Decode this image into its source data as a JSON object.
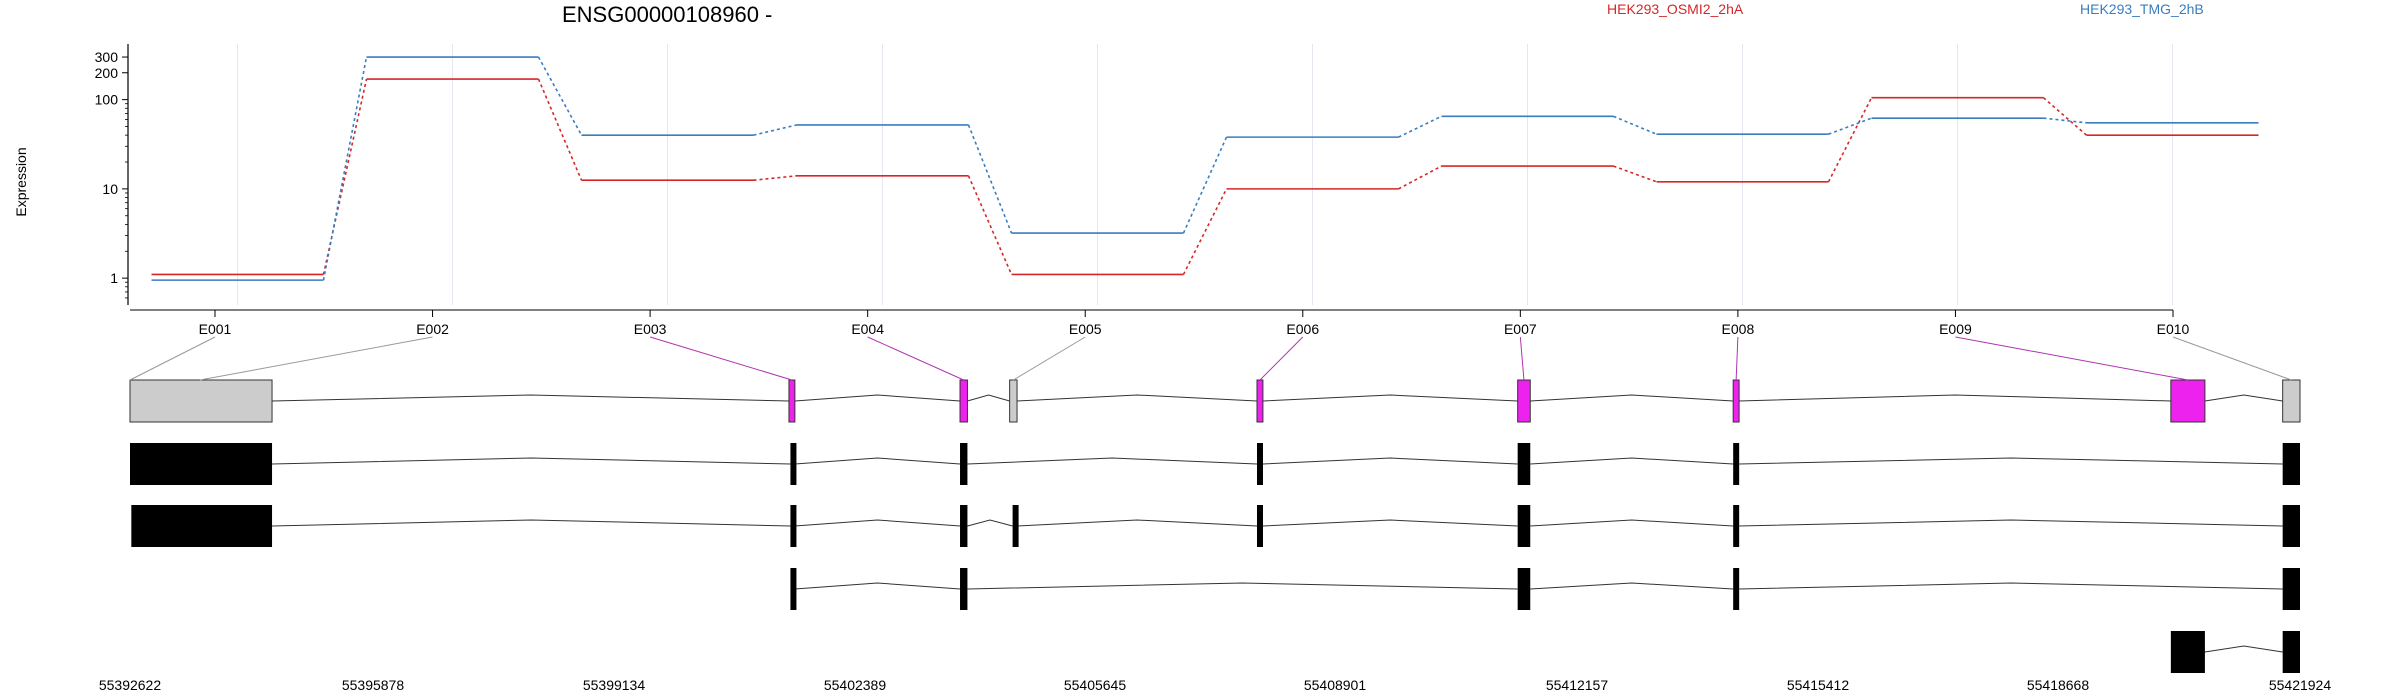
{
  "chart_data": {
    "type": "line",
    "title": "ENSG00000108960 -",
    "ylabel": "Expression",
    "y_scale": "log",
    "y_ticks": [
      1,
      10,
      100,
      200,
      300
    ],
    "y_tick_labels": [
      "1",
      "10",
      "100",
      "200",
      "300"
    ],
    "categories": [
      "E001",
      "E002",
      "E003",
      "E004",
      "E005",
      "E006",
      "E007",
      "E008",
      "E009",
      "E010"
    ],
    "series": [
      {
        "name": "HEK293_OSMI2_2hA",
        "color": "#d62728",
        "values": [
          1.1,
          170,
          12.5,
          14,
          1.1,
          10,
          18,
          12,
          105,
          40
        ]
      },
      {
        "name": "HEK293_TMG_2hB",
        "color": "#3a7dbf",
        "values": [
          0.95,
          300,
          40,
          52,
          3.2,
          38,
          65,
          41,
          62,
          55
        ]
      }
    ],
    "grid": true,
    "legend_placement": "top",
    "genomic_coordinate_labels": [
      "55392622",
      "55395878",
      "55399134",
      "55402389",
      "55405645",
      "55408901",
      "55412157",
      "55415412",
      "55418668",
      "55421924"
    ],
    "genome_range": [
      55392622,
      55421924
    ],
    "exons": [
      {
        "id": "E001",
        "start": 55392622,
        "end": 55394540,
        "highlighted": false
      },
      {
        "id": "E002",
        "start": 55392622,
        "end": 55394540,
        "highlighted": false
      },
      {
        "id": "E003",
        "start": 55401520,
        "end": 55401600,
        "highlighted": true
      },
      {
        "id": "E004",
        "start": 55403830,
        "end": 55403930,
        "highlighted": true
      },
      {
        "id": "E005",
        "start": 55404500,
        "end": 55404600,
        "highlighted": false
      },
      {
        "id": "E006",
        "start": 55407840,
        "end": 55407920,
        "highlighted": true
      },
      {
        "id": "E007",
        "start": 55411360,
        "end": 55411530,
        "highlighted": true
      },
      {
        "id": "E008",
        "start": 55414270,
        "end": 55414350,
        "highlighted": true
      },
      {
        "id": "E009",
        "start": 55420180,
        "end": 55420640,
        "highlighted": true
      },
      {
        "id": "E010",
        "start": 55421690,
        "end": 55421924,
        "highlighted": false
      }
    ],
    "transcripts": [
      {
        "exons": [
          [
            55392622,
            55394540
          ],
          [
            55401540,
            55401600
          ],
          [
            55403830,
            55403930
          ],
          [
            55407840,
            55407920
          ],
          [
            55411360,
            55411530
          ],
          [
            55414270,
            55414350
          ],
          [
            55421690,
            55421924
          ]
        ]
      },
      {
        "exons": [
          [
            55392640,
            55394540
          ],
          [
            55401540,
            55401600
          ],
          [
            55403830,
            55403930
          ],
          [
            55404540,
            55404600
          ],
          [
            55407840,
            55407920
          ],
          [
            55411360,
            55411530
          ],
          [
            55414270,
            55414350
          ],
          [
            55421690,
            55421924
          ]
        ]
      },
      {
        "exons": [
          [
            55401540,
            55401600
          ],
          [
            55403830,
            55403930
          ],
          [
            55411360,
            55411530
          ],
          [
            55414270,
            55414350
          ],
          [
            55421690,
            55421924
          ]
        ]
      },
      {
        "exons": [
          [
            55420180,
            55420640
          ],
          [
            55421690,
            55421924
          ]
        ]
      }
    ],
    "highlight_color": "#ee22ee",
    "exon_fill_color": "#cccccc",
    "transcript_exon_color": "#000000"
  }
}
